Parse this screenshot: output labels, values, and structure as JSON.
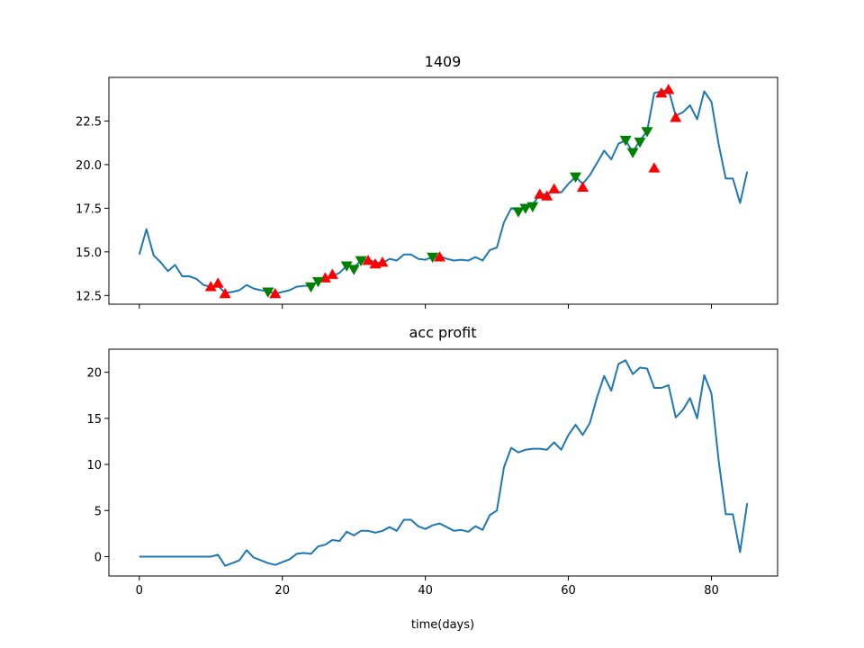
{
  "chart_data": [
    {
      "type": "line",
      "title": "1409",
      "xlabel": "",
      "ylabel": "",
      "xlim": [
        -4.25,
        89.25
      ],
      "ylim": [
        12.0,
        25.0
      ],
      "xticks": [
        0,
        20,
        40,
        60,
        80
      ],
      "show_xtick_labels": false,
      "yticks": [
        12.5,
        15.0,
        17.5,
        20.0,
        22.5
      ],
      "ytick_labels": [
        "12.5",
        "15.0",
        "17.5",
        "20.0",
        "22.5"
      ],
      "line_color": "#1f77b4",
      "buy_color": "#ff0000",
      "sell_color": "#008000",
      "grid": false,
      "x": [
        0,
        1,
        2,
        3,
        4,
        5,
        6,
        7,
        8,
        9,
        10,
        11,
        12,
        13,
        14,
        15,
        16,
        17,
        18,
        19,
        20,
        21,
        22,
        23,
        24,
        25,
        26,
        27,
        28,
        29,
        30,
        31,
        32,
        33,
        34,
        35,
        36,
        37,
        38,
        39,
        40,
        41,
        42,
        43,
        44,
        45,
        46,
        47,
        48,
        49,
        50,
        51,
        52,
        53,
        54,
        55,
        56,
        57,
        58,
        59,
        60,
        61,
        62,
        63,
        64,
        65,
        66,
        67,
        68,
        69,
        70,
        71,
        72,
        73,
        74,
        75,
        76,
        77,
        78,
        79,
        80,
        81,
        82,
        83,
        84,
        85
      ],
      "y": [
        14.85,
        16.3,
        14.8,
        14.4,
        13.9,
        14.25,
        13.6,
        13.6,
        13.45,
        13.1,
        13.0,
        13.05,
        12.65,
        12.7,
        12.8,
        13.1,
        12.9,
        12.8,
        12.75,
        12.6,
        12.7,
        12.8,
        13.0,
        13.05,
        13.05,
        13.3,
        13.5,
        13.6,
        13.8,
        14.2,
        14.1,
        14.5,
        14.55,
        14.4,
        14.35,
        14.6,
        14.5,
        14.85,
        14.85,
        14.6,
        14.55,
        14.7,
        14.75,
        14.6,
        14.5,
        14.55,
        14.5,
        14.7,
        14.5,
        15.1,
        15.25,
        16.7,
        17.5,
        17.4,
        17.5,
        17.7,
        18.3,
        18.3,
        18.5,
        18.4,
        18.9,
        19.3,
        18.9,
        19.4,
        20.1,
        20.8,
        20.3,
        21.2,
        21.4,
        20.7,
        21.4,
        21.9,
        24.1,
        24.2,
        24.3,
        22.8,
        23.0,
        23.4,
        22.6,
        24.2,
        23.6,
        21.2,
        19.2,
        19.2,
        17.8,
        19.6
      ],
      "buy_signals": [
        [
          10,
          13.0
        ],
        [
          11,
          13.2
        ],
        [
          12,
          12.6
        ],
        [
          19,
          12.6
        ],
        [
          26,
          13.5
        ],
        [
          27,
          13.7
        ],
        [
          32,
          14.5
        ],
        [
          33,
          14.3
        ],
        [
          34,
          14.4
        ],
        [
          42,
          14.7
        ],
        [
          56,
          18.3
        ],
        [
          57,
          18.2
        ],
        [
          58,
          18.6
        ],
        [
          62,
          18.7
        ],
        [
          72,
          19.8
        ],
        [
          73,
          24.1
        ],
        [
          74,
          24.3
        ],
        [
          75,
          22.7
        ]
      ],
      "sell_signals": [
        [
          18,
          12.7
        ],
        [
          24,
          13.0
        ],
        [
          25,
          13.3
        ],
        [
          29,
          14.2
        ],
        [
          30,
          14.0
        ],
        [
          31,
          14.5
        ],
        [
          41,
          14.7
        ],
        [
          53,
          17.3
        ],
        [
          54,
          17.5
        ],
        [
          55,
          17.6
        ],
        [
          61,
          19.3
        ],
        [
          68,
          21.4
        ],
        [
          69,
          20.7
        ],
        [
          70,
          21.3
        ],
        [
          71,
          21.9
        ]
      ]
    },
    {
      "type": "line",
      "title": "acc profit",
      "xlabel": "time(days)",
      "ylabel": "",
      "xlim": [
        -4.25,
        89.25
      ],
      "ylim": [
        -2.1,
        22.5
      ],
      "xticks": [
        0,
        20,
        40,
        60,
        80
      ],
      "xtick_labels": [
        "0",
        "20",
        "40",
        "60",
        "80"
      ],
      "show_xtick_labels": true,
      "yticks": [
        0,
        5,
        10,
        15,
        20
      ],
      "ytick_labels": [
        "0",
        "5",
        "10",
        "15",
        "20"
      ],
      "line_color": "#1f77b4",
      "grid": false,
      "x": [
        0,
        1,
        2,
        3,
        4,
        5,
        6,
        7,
        8,
        9,
        10,
        11,
        12,
        13,
        14,
        15,
        16,
        17,
        18,
        19,
        20,
        21,
        22,
        23,
        24,
        25,
        26,
        27,
        28,
        29,
        30,
        31,
        32,
        33,
        34,
        35,
        36,
        37,
        38,
        39,
        40,
        41,
        42,
        43,
        44,
        45,
        46,
        47,
        48,
        49,
        50,
        51,
        52,
        53,
        54,
        55,
        56,
        57,
        58,
        59,
        60,
        61,
        62,
        63,
        64,
        65,
        66,
        67,
        68,
        69,
        70,
        71,
        72,
        73,
        74,
        75,
        76,
        77,
        78,
        79,
        80,
        81,
        82,
        83,
        84,
        85
      ],
      "y": [
        0,
        0,
        0,
        0,
        0,
        0,
        0,
        0,
        0,
        0,
        0,
        0.2,
        -1.0,
        -0.7,
        -0.4,
        0.7,
        -0.1,
        -0.4,
        -0.7,
        -0.9,
        -0.6,
        -0.3,
        0.3,
        0.4,
        0.3,
        1.1,
        1.3,
        1.8,
        1.7,
        2.7,
        2.3,
        2.8,
        2.8,
        2.6,
        2.8,
        3.2,
        2.8,
        4.0,
        4.0,
        3.3,
        3.0,
        3.4,
        3.6,
        3.2,
        2.8,
        2.9,
        2.7,
        3.3,
        2.9,
        4.5,
        5.0,
        9.7,
        11.8,
        11.3,
        11.6,
        11.7,
        11.7,
        11.6,
        12.4,
        11.6,
        13.2,
        14.3,
        13.2,
        14.5,
        17.3,
        19.6,
        18.0,
        20.9,
        21.3,
        19.8,
        20.5,
        20.4,
        18.3,
        18.3,
        18.6,
        15.1,
        15.9,
        17.2,
        15.0,
        19.7,
        17.7,
        10.5,
        4.6,
        4.6,
        0.5,
        5.8
      ]
    }
  ]
}
